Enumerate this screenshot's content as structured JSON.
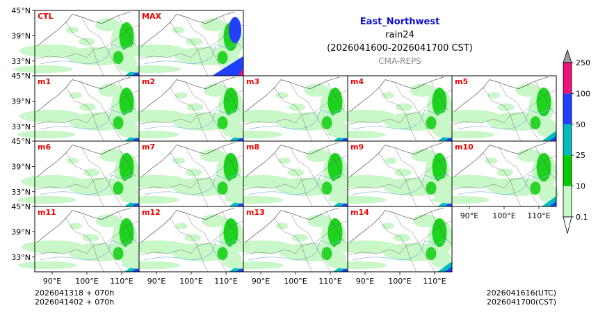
{
  "header": {
    "region": "East_Northwest",
    "variable": "rain24",
    "period": "(2026041600-2026041700 CST)",
    "source": "CMA-REPS"
  },
  "footer": {
    "init_utc": "2026041318  +  070h",
    "init_cst": "2026041402  +  070h",
    "valid_utc": "2026041616(UTC)",
    "valid_cst": "2026041700(CST)"
  },
  "chart_data": {
    "type": "map-panel-grid",
    "title": "East_Northwest",
    "variable": "rain24",
    "members": [
      "CTL",
      "MAX",
      "m1",
      "m2",
      "m3",
      "m4",
      "m5",
      "m6",
      "m7",
      "m8",
      "m9",
      "m10",
      "m11",
      "m12",
      "m13",
      "m14"
    ],
    "panel_layout": [
      [
        "CTL",
        "MAX"
      ],
      [
        "m1",
        "m2",
        "m3",
        "m4",
        "m5"
      ],
      [
        "m6",
        "m7",
        "m8",
        "m9",
        "m10"
      ],
      [
        "m11",
        "m12",
        "m13",
        "m14"
      ]
    ],
    "lon_ticks": [
      "90°E",
      "100°E",
      "110°E"
    ],
    "lat_ticks": [
      "45°N",
      "39°N",
      "33°N"
    ],
    "colorbar": {
      "levels": [
        0.1,
        10,
        25,
        50,
        100,
        250
      ],
      "labels": [
        "0.1",
        "10",
        "25",
        "50",
        "100",
        "250"
      ],
      "colors": [
        "#c8f7c8",
        "#00cc00",
        "#00bbbb",
        "#2040ff",
        "#ee1177"
      ],
      "extend_min_color": "#ffffff",
      "extend_max_color": "#9c9c9c"
    }
  }
}
